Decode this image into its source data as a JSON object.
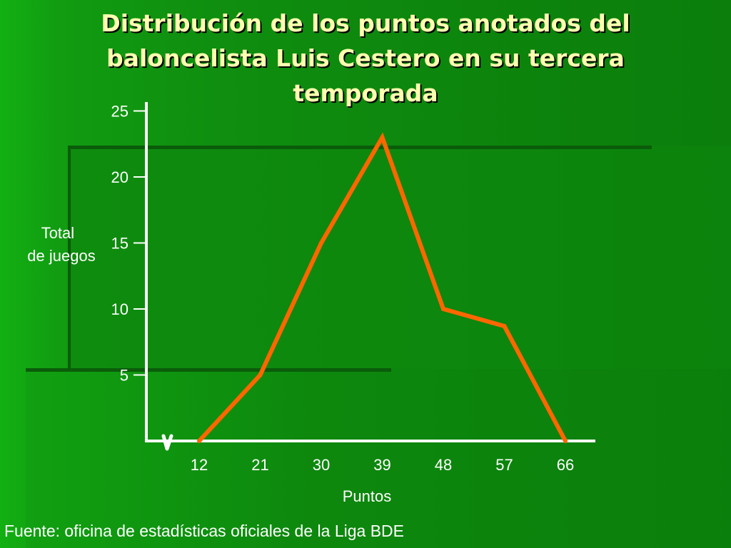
{
  "title_lines": [
    "Distribución de los puntos anotados del",
    "baloncelista Luis Cestero en su tercera",
    "temporada"
  ],
  "source": "Fuente: oficina de estadísticas oficiales de la Liga BDE",
  "colors": {
    "background": "#0e8c0e",
    "title": "#ffffb0",
    "line": "#ff6600",
    "axis": "#ffffff",
    "text": "#ffffff"
  },
  "chart_data": {
    "type": "line",
    "xlabel": "Puntos",
    "ylabel": "Total\nde juegos",
    "x": [
      12,
      21,
      30,
      39,
      48,
      57,
      66
    ],
    "y": [
      0,
      5,
      15,
      23,
      10,
      8.7,
      0
    ],
    "x_ticks": [
      "12",
      "21",
      "30",
      "39",
      "48",
      "57",
      "66"
    ],
    "y_ticks": [
      5,
      10,
      15,
      20,
      25
    ],
    "ylim": [
      0,
      25
    ],
    "axis_break": true,
    "grid": false,
    "legend": "none"
  }
}
